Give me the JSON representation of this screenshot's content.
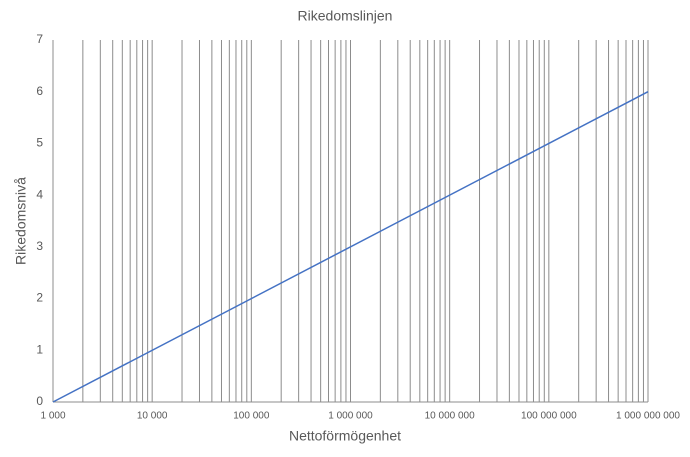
{
  "chart_data": {
    "type": "line",
    "title": "Rikedomslinjen",
    "x_label": "Nettoförmögenhet",
    "y_label": "Rikedomsnivå",
    "xscale": "log",
    "xgrid": "major-minor",
    "ygrid": false,
    "x": [
      1000,
      1000000000
    ],
    "series": [
      {
        "values": [
          0,
          6
        ],
        "color": "#4472c4"
      }
    ],
    "xlim": [
      1000,
      1000000000
    ],
    "xticks": [
      {
        "value": 1000,
        "label": "1 000"
      },
      {
        "value": 10000,
        "label": "10 000"
      },
      {
        "value": 100000,
        "label": "100 000"
      },
      {
        "value": 1000000,
        "label": "1 000 000"
      },
      {
        "value": 10000000,
        "label": "10 000 000"
      },
      {
        "value": 100000000,
        "label": "100 000 000"
      },
      {
        "value": 1000000000,
        "label": "1 000 000 000"
      }
    ],
    "ylim": [
      0,
      7
    ],
    "yticks": [
      0,
      1,
      2,
      3,
      4,
      5,
      6,
      7
    ]
  }
}
